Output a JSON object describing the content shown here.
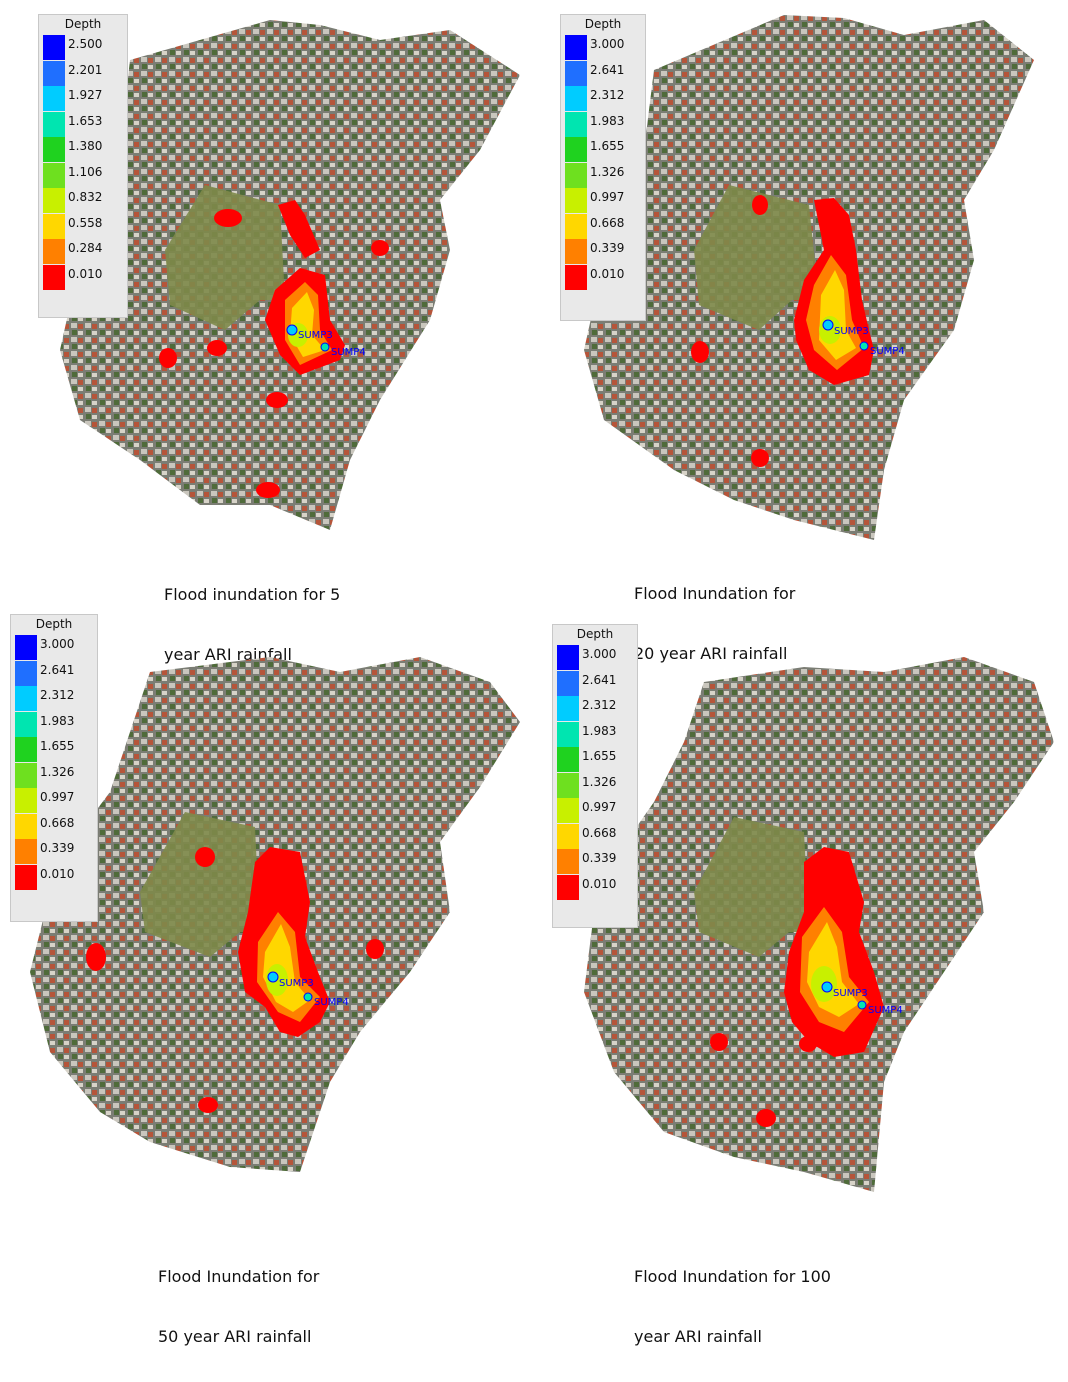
{
  "panels": [
    {
      "caption_line1": "Flood inundation for 5",
      "caption_line2": "year ARI rainfall",
      "legend": {
        "title": "Depth",
        "labels": [
          "2.500",
          "2.201",
          "1.927",
          "1.653",
          "1.380",
          "1.106",
          "0.832",
          "0.558",
          "0.284",
          "0.010"
        ]
      },
      "marker_labels": [
        "SUMP3",
        "SUMP4"
      ]
    },
    {
      "caption_line1": "Flood Inundation for",
      "caption_line2": "20 year ARI rainfall",
      "legend": {
        "title": "Depth",
        "labels": [
          "3.000",
          "2.641",
          "2.312",
          "1.983",
          "1.655",
          "1.326",
          "0.997",
          "0.668",
          "0.339",
          "0.010"
        ]
      },
      "marker_labels": [
        "SUMP3",
        "SUMP4"
      ]
    },
    {
      "caption_line1": "Flood Inundation for",
      "caption_line2": "50 year ARI rainfall",
      "legend": {
        "title": "Depth",
        "labels": [
          "3.000",
          "2.641",
          "2.312",
          "1.983",
          "1.655",
          "1.326",
          "0.997",
          "0.668",
          "0.339",
          "0.010"
        ]
      },
      "marker_labels": [
        "SUMP3",
        "SUMP4"
      ]
    },
    {
      "caption_line1": "Flood Inundation for 100",
      "caption_line2": "year ARI rainfall",
      "legend": {
        "title": "Depth",
        "labels": [
          "3.000",
          "2.641",
          "2.312",
          "1.983",
          "1.655",
          "1.326",
          "0.997",
          "0.668",
          "0.339",
          "0.010"
        ]
      },
      "marker_labels": [
        "SUMP3",
        "SUMP4"
      ]
    }
  ],
  "legend_colors": [
    "#0000ff",
    "#1f6fff",
    "#00ccff",
    "#00e5b0",
    "#1fd21f",
    "#6ee01f",
    "#c8f000",
    "#ffd700",
    "#ff8000",
    "#ff0000"
  ],
  "colors": {
    "urban": "#8a8a80",
    "park": "#7e8a4a",
    "flood_shallow": "#ff0000",
    "flood_mid": "#ff8000",
    "flood_deep": "#ffd700",
    "flood_core": "#c8f000"
  }
}
